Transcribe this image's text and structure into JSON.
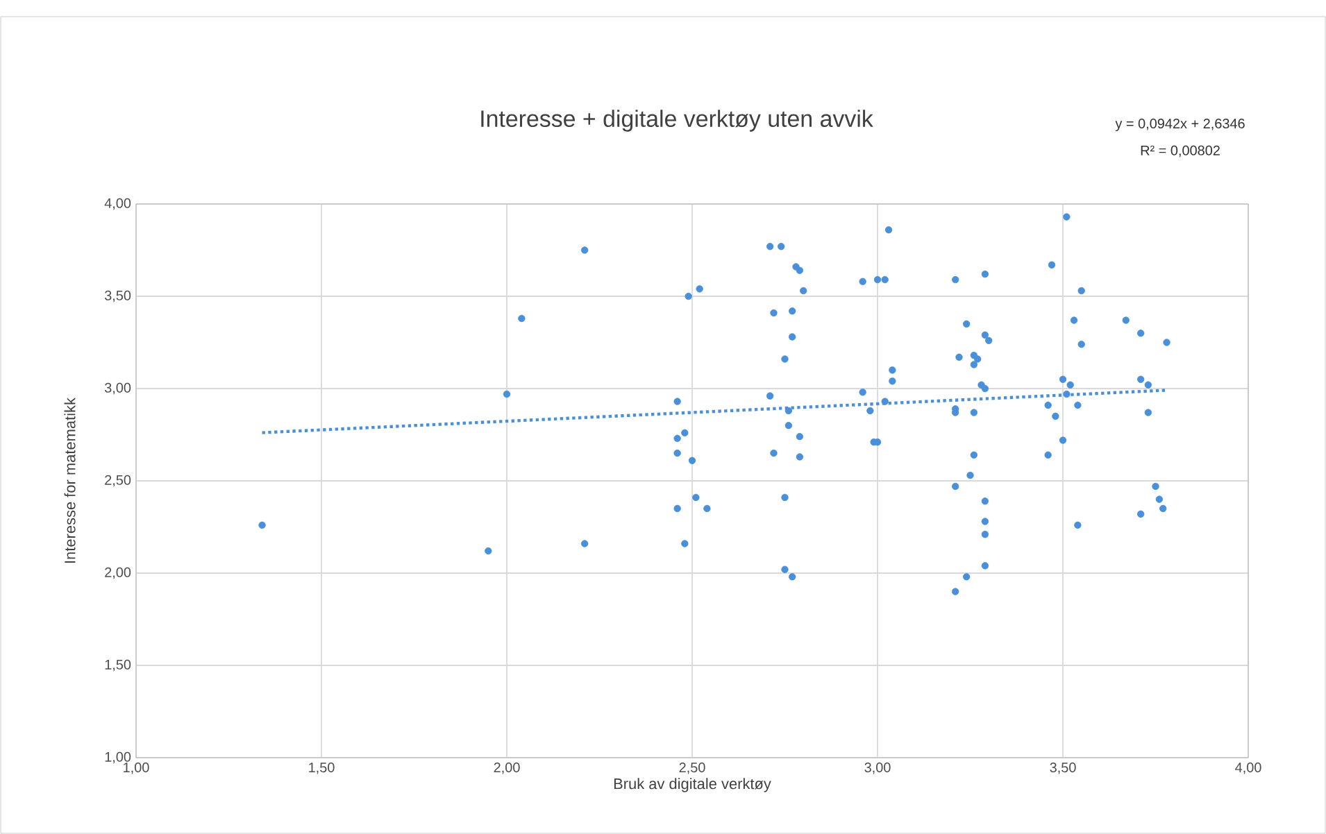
{
  "chart_data": {
    "type": "scatter",
    "title": "Interesse + digitale verktøy uten avvik",
    "xlabel": "Bruk av digitale verktøy",
    "ylabel": "Interesse for matematikk",
    "annotations": [
      "y = 0,0942x + 2,6346",
      "R² = 0,00802"
    ],
    "xlim": [
      1,
      4
    ],
    "ylim": [
      1,
      4
    ],
    "xticks": [
      {
        "value": 1,
        "label": "1,00"
      },
      {
        "value": 1.5,
        "label": "1,50"
      },
      {
        "value": 2,
        "label": "2,00"
      },
      {
        "value": 2.5,
        "label": "2,50"
      },
      {
        "value": 3,
        "label": "3,00"
      },
      {
        "value": 3.5,
        "label": "3,50"
      },
      {
        "value": 4,
        "label": "4,00"
      }
    ],
    "yticks": [
      {
        "value": 1,
        "label": "1,00"
      },
      {
        "value": 1.5,
        "label": "1,50"
      },
      {
        "value": 2,
        "label": "2,00"
      },
      {
        "value": 2.5,
        "label": "2,50"
      },
      {
        "value": 3,
        "label": "3,00"
      },
      {
        "value": 3.5,
        "label": "3,50"
      },
      {
        "value": 4,
        "label": "4,00"
      }
    ],
    "grid": true,
    "series": [
      {
        "marker": "circle",
        "color": "#4a90d9",
        "x": [
          1.34,
          1.95,
          2.04,
          2.0,
          2.21,
          2.21,
          2.49,
          2.52,
          2.46,
          2.46,
          2.48,
          2.46,
          2.5,
          2.51,
          2.46,
          2.54,
          2.48,
          2.71,
          2.74,
          2.78,
          2.79,
          2.8,
          2.72,
          2.77,
          2.77,
          2.75,
          2.71,
          2.76,
          2.76,
          2.79,
          2.72,
          2.79,
          2.75,
          2.75,
          2.77,
          2.96,
          3.0,
          3.02,
          3.03,
          3.04,
          3.04,
          2.96,
          2.98,
          3.02,
          2.99,
          3.0,
          3.21,
          3.29,
          3.24,
          3.29,
          3.3,
          3.22,
          3.26,
          3.27,
          3.26,
          3.28,
          3.29,
          3.21,
          3.21,
          3.26,
          3.26,
          3.25,
          3.21,
          3.29,
          3.29,
          3.29,
          3.29,
          3.24,
          3.21,
          3.51,
          3.47,
          3.55,
          3.53,
          3.55,
          3.67,
          3.71,
          3.78,
          3.5,
          3.52,
          3.51,
          3.46,
          3.54,
          3.48,
          3.5,
          3.46,
          3.71,
          3.73,
          3.73,
          3.75,
          3.76,
          3.77,
          3.71,
          3.54
        ],
        "values": [
          2.26,
          2.12,
          3.38,
          2.97,
          3.75,
          2.16,
          3.5,
          3.54,
          2.93,
          2.73,
          2.76,
          2.65,
          2.61,
          2.41,
          2.35,
          2.35,
          2.16,
          3.77,
          3.77,
          3.66,
          3.64,
          3.53,
          3.41,
          3.42,
          3.28,
          3.16,
          2.96,
          2.88,
          2.8,
          2.74,
          2.65,
          2.63,
          2.41,
          2.02,
          1.98,
          3.58,
          3.59,
          3.59,
          3.86,
          3.1,
          3.04,
          2.98,
          2.88,
          2.93,
          2.71,
          2.71,
          3.59,
          3.62,
          3.35,
          3.29,
          3.26,
          3.17,
          3.18,
          3.16,
          3.13,
          3.02,
          3.0,
          2.89,
          2.87,
          2.87,
          2.64,
          2.53,
          2.47,
          2.39,
          2.28,
          2.21,
          2.04,
          1.98,
          1.9,
          3.93,
          3.67,
          3.53,
          3.37,
          3.24,
          3.37,
          3.3,
          3.25,
          3.05,
          3.02,
          2.97,
          2.91,
          2.91,
          2.85,
          2.72,
          2.64,
          3.05,
          3.02,
          2.87,
          2.47,
          2.4,
          2.35,
          2.32,
          2.26
        ]
      },
      {
        "type": "line",
        "line_style": "dotted",
        "marker": "none",
        "color": "#4a90d9",
        "x": [
          1.34,
          3.78
        ],
        "values": [
          2.761,
          2.991
        ]
      }
    ]
  }
}
